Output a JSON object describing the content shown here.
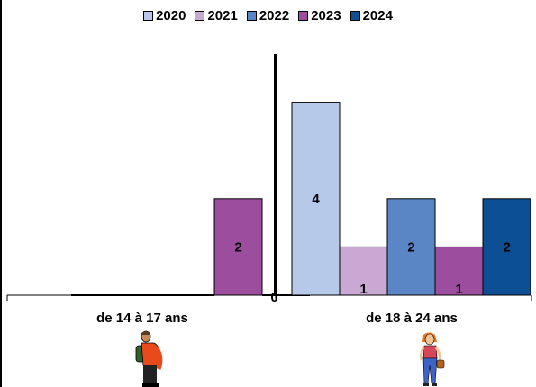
{
  "chart_data": {
    "type": "bar",
    "categories": [
      "de 14 à 17 ans",
      "de 18 à 24 ans"
    ],
    "series": [
      {
        "name": "2020",
        "color": "#b7c9e8",
        "values": [
          0,
          4
        ],
        "labels": [
          "",
          "4"
        ]
      },
      {
        "name": "2021",
        "color": "#c9a8d4",
        "values": [
          0,
          1
        ],
        "labels": [
          "",
          "1"
        ]
      },
      {
        "name": "2022",
        "color": "#5b86c6",
        "values": [
          0,
          2
        ],
        "labels": [
          "",
          "2"
        ]
      },
      {
        "name": "2023",
        "color": "#9c4d9e",
        "values": [
          2,
          1
        ],
        "labels": [
          "2",
          "1"
        ]
      },
      {
        "name": "2024",
        "color": "#0c4f94",
        "values": [
          0,
          2
        ],
        "labels": [
          "0",
          "2"
        ]
      }
    ],
    "ylim": [
      0,
      5
    ],
    "grid": false,
    "legend_position": "top",
    "divider_color": "#000000",
    "figures": [
      "boy-with-backpack",
      "girl-with-bag"
    ]
  }
}
